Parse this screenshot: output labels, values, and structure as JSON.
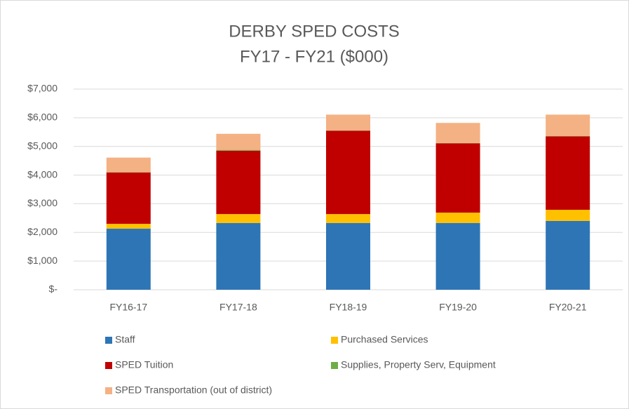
{
  "chart_data": {
    "type": "stacked_bar",
    "title": "DERBY SPED COSTS",
    "subtitle": "FY17 - FY21 ($000)",
    "categories": [
      "FY16-17",
      "FY17-18",
      "FY18-19",
      "FY19-20",
      "FY20-21"
    ],
    "series": [
      {
        "name": "Staff",
        "color": "#2e75b6",
        "values": [
          2130,
          2330,
          2330,
          2330,
          2400
        ]
      },
      {
        "name": "Purchased Services",
        "color": "#ffc000",
        "values": [
          170,
          310,
          310,
          360,
          390
        ]
      },
      {
        "name": "SPED Tuition",
        "color": "#c00000",
        "values": [
          1790,
          2210,
          2910,
          2420,
          2560
        ]
      },
      {
        "name": "Supplies, Property Serv, Equipment",
        "color": "#70ad47",
        "values": [
          10,
          30,
          10,
          10,
          10
        ]
      },
      {
        "name": "SPED Transportation (out of district)",
        "color": "#f4b183",
        "values": [
          510,
          560,
          550,
          700,
          750
        ]
      }
    ],
    "ylim": [
      0,
      7000
    ],
    "yticks": [
      {
        "value": 0,
        "label": "$-"
      },
      {
        "value": 1000,
        "label": "$1,000"
      },
      {
        "value": 2000,
        "label": "$2,000"
      },
      {
        "value": 3000,
        "label": "$3,000"
      },
      {
        "value": 4000,
        "label": "$4,000"
      },
      {
        "value": 5000,
        "label": "$5,000"
      },
      {
        "value": 6000,
        "label": "$6,000"
      },
      {
        "value": 7000,
        "label": "$7,000"
      }
    ],
    "grid": true,
    "legend": "bottom"
  }
}
